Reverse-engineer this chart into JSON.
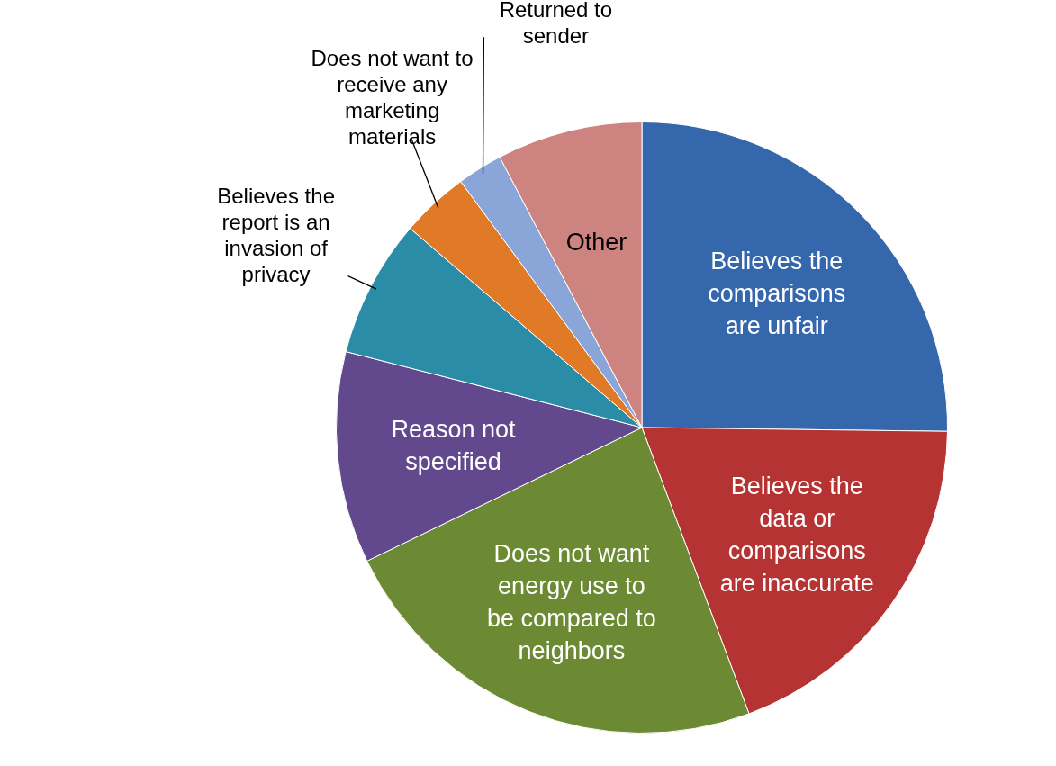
{
  "chart_data": {
    "type": "pie",
    "categories": [
      "Believes the comparisons are unfair",
      "Believes the data or comparisons are inaccurate",
      "Does not want energy use to be compared to neighbors",
      "Reason not specified",
      "Believes the report is an invasion of privacy",
      "Does not want to receive any marketing materials",
      "Returned to sender",
      "Other"
    ],
    "values": [
      25.2,
      19.1,
      23.5,
      11.2,
      7.3,
      3.6,
      2.4,
      7.7
    ],
    "colors": [
      "#3467ac",
      "#b53333",
      "#6c8a33",
      "#62488c",
      "#2a8ca6",
      "#e07a26",
      "#8aa6d8",
      "#cd8481"
    ],
    "legend": false
  }
}
